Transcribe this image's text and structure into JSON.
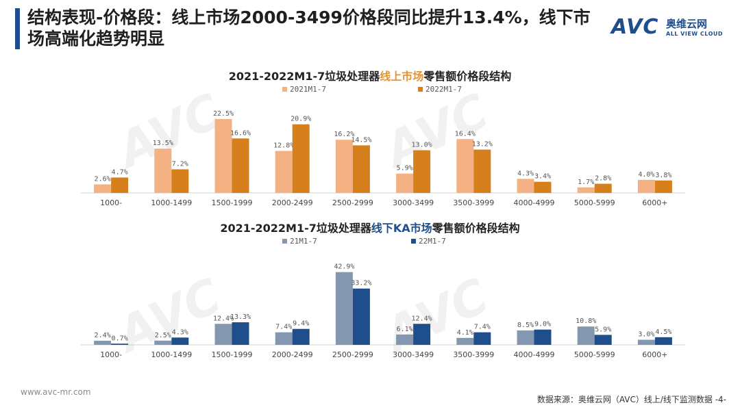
{
  "header": {
    "title": "结构表现-价格段：线上市场2000-3499价格段同比提升13.4%，线下市场高端化趋势明显"
  },
  "logo": {
    "brand": "AVC",
    "cn_name": "奥维云网",
    "en_name": "ALL VIEW CLOUD"
  },
  "colors": {
    "online_2021": "#f4b183",
    "online_2022": "#d5801d",
    "offline_21": "#8497b0",
    "offline_22": "#1f4e8c",
    "title_bar": "#1f4e8c"
  },
  "chart_data": [
    {
      "type": "bar",
      "title_prefix": "2021-2022M1-7垃圾处理器",
      "title_highlight": "线上市场",
      "title_suffix": "零售额价格段结构",
      "categories": [
        "1000-",
        "1000-1499",
        "1500-1999",
        "2000-2499",
        "2500-2999",
        "3000-3499",
        "3500-3999",
        "4000-4999",
        "5000-5999",
        "6000+"
      ],
      "series": [
        {
          "name": "2021M1-7",
          "values": [
            2.6,
            13.5,
            22.5,
            12.8,
            16.2,
            5.9,
            16.4,
            4.3,
            1.7,
            4.0
          ],
          "labels": [
            "2.6%",
            "13.5%",
            "22.5%",
            "12.8%",
            "16.2%",
            "5.9%",
            "16.4%",
            "4.3%",
            "1.7%",
            "4.0%"
          ]
        },
        {
          "name": "2022M1-7",
          "values": [
            4.7,
            7.2,
            16.6,
            20.9,
            14.5,
            13.0,
            13.2,
            3.4,
            2.8,
            3.8
          ],
          "labels": [
            "4.7%",
            "7.2%",
            "16.6%",
            "20.9%",
            "14.5%",
            "13.0%",
            "13.2%",
            "3.4%",
            "2.8%",
            "3.8%"
          ]
        }
      ],
      "ylim": [
        0,
        25
      ],
      "legend": "top",
      "grid": false
    },
    {
      "type": "bar",
      "title_prefix": "2021-2022M1-7垃圾处理器",
      "title_highlight": "线下KA市场",
      "title_suffix": "零售额价格段结构",
      "categories": [
        "1000-",
        "1000-1499",
        "1500-1999",
        "2000-2499",
        "2500-2999",
        "3000-3499",
        "3500-3999",
        "4000-4999",
        "5000-5999",
        "6000+"
      ],
      "series": [
        {
          "name": "21M1-7",
          "values": [
            2.4,
            2.5,
            12.4,
            7.4,
            42.9,
            6.1,
            4.1,
            8.5,
            10.8,
            3.0
          ],
          "labels": [
            "2.4%",
            "2.5%",
            "12.4%",
            "7.4%",
            "42.9%",
            "6.1%",
            "4.1%",
            "8.5%",
            "10.8%",
            "3.0%"
          ]
        },
        {
          "name": "22M1-7",
          "values": [
            0.7,
            4.3,
            13.3,
            9.4,
            33.2,
            12.4,
            7.4,
            9.0,
            5.9,
            4.5
          ],
          "labels": [
            "0.7%",
            "4.3%",
            "13.3%",
            "9.4%",
            "33.2%",
            "12.4%",
            "7.4%",
            "9.0%",
            "5.9%",
            "4.5%"
          ]
        }
      ],
      "ylim": [
        0,
        46
      ],
      "legend": "top",
      "grid": false
    }
  ],
  "footer": {
    "website": "www.avc-mr.com",
    "source": "数据来源：奥维云网（AVC）线上/线下监测数据  -4-"
  }
}
